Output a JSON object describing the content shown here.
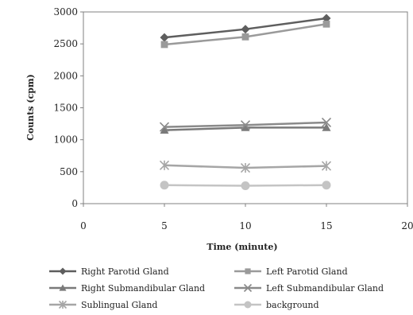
{
  "chart_data": {
    "type": "line",
    "title": "",
    "xlabel": "Time (minute)",
    "ylabel": "Counts (cpm)",
    "x": [
      5,
      10,
      15
    ],
    "xlim": [
      0,
      20
    ],
    "ylim": [
      0,
      3000
    ],
    "xticks": [
      "0",
      "5",
      "10",
      "15",
      "20"
    ],
    "yticks": [
      "0",
      "500",
      "1000",
      "1500",
      "2000",
      "2500",
      "3000"
    ],
    "grid": false,
    "legend_position": "bottom",
    "series": [
      {
        "name": "Right Parotid Gland",
        "values": [
          2600,
          2730,
          2900
        ],
        "color": "#5e5e5e",
        "marker": "diamond"
      },
      {
        "name": "Left Parotid Gland",
        "values": [
          2490,
          2610,
          2810
        ],
        "color": "#9a9a9a",
        "marker": "square"
      },
      {
        "name": "Right Submandibular Gland",
        "values": [
          1150,
          1190,
          1190
        ],
        "color": "#7a7a7a",
        "marker": "triangle"
      },
      {
        "name": "Left Submandibular Gland",
        "values": [
          1200,
          1230,
          1270
        ],
        "color": "#8a8a8a",
        "marker": "x"
      },
      {
        "name": "Sublingual Gland",
        "values": [
          600,
          560,
          590
        ],
        "color": "#a6a6a6",
        "marker": "star"
      },
      {
        "name": "background",
        "values": [
          290,
          280,
          290
        ],
        "color": "#c4c4c4",
        "marker": "circle"
      }
    ]
  }
}
